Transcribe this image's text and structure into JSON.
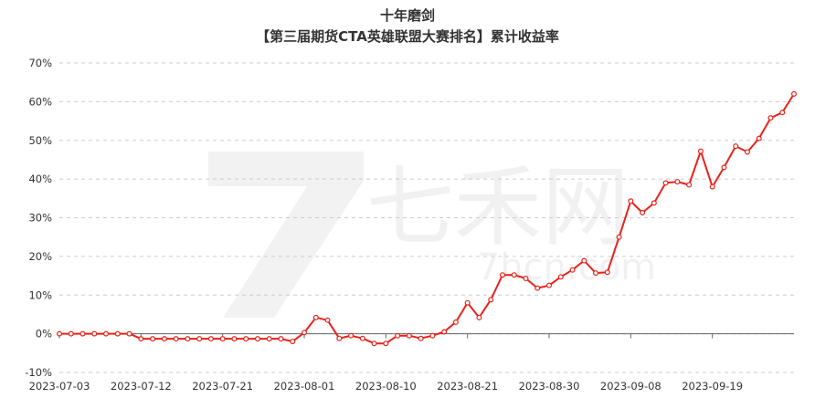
{
  "chart_data": {
    "type": "line",
    "title": "十年磨剑",
    "subtitle": "【第三届期货CTA英雄联盟大赛排名】累计收益率",
    "watermark": {
      "brand": "七禾网",
      "url": "7hcn.com"
    },
    "colors": {
      "line": "#e8221a",
      "point_fill": "#ffffff",
      "grid": "#cccccc",
      "text": "#333333"
    },
    "grid": true,
    "xlabel": "",
    "ylabel": "",
    "ylim": [
      -10,
      70
    ],
    "y_ticks": [
      "-10%",
      "0%",
      "10%",
      "20%",
      "30%",
      "40%",
      "50%",
      "60%",
      "70%"
    ],
    "x_tick_labels": [
      {
        "index": 0,
        "label": "2023-07-03"
      },
      {
        "index": 7,
        "label": "2023-07-12"
      },
      {
        "index": 14,
        "label": "2023-07-21"
      },
      {
        "index": 21,
        "label": "2023-08-01"
      },
      {
        "index": 28,
        "label": "2023-08-10"
      },
      {
        "index": 35,
        "label": "2023-08-21"
      },
      {
        "index": 42,
        "label": "2023-08-30"
      },
      {
        "index": 49,
        "label": "2023-09-08"
      },
      {
        "index": 56,
        "label": "2023-09-19"
      }
    ],
    "series": [
      {
        "values": [
          0,
          0,
          0,
          0,
          0,
          0,
          0,
          -1.3,
          -1.3,
          -1.3,
          -1.3,
          -1.3,
          -1.3,
          -1.3,
          -1.3,
          -1.3,
          -1.3,
          -1.3,
          -1.3,
          -1.3,
          -2,
          0.3,
          4.2,
          3.5,
          -1.2,
          -0.5,
          -1.2,
          -2.5,
          -2.5,
          -0.5,
          -0.5,
          -1.2,
          -0.5,
          0.5,
          3,
          8,
          4.2,
          8.8,
          15.2,
          15.2,
          14.3,
          11.8,
          12.5,
          14.7,
          16.5,
          18.9,
          15.7,
          15.9,
          25,
          34.3,
          31.3,
          33.8,
          39,
          39.3,
          38.5,
          47.2,
          38,
          43,
          48.5,
          47,
          50.5,
          55.8,
          57.2,
          62
        ]
      }
    ]
  }
}
